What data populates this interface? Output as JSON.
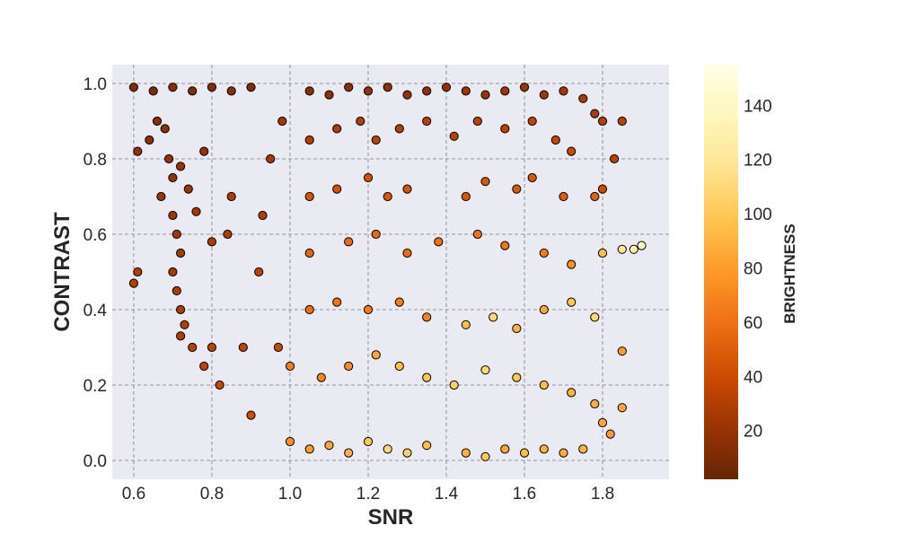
{
  "chart_data": {
    "type": "scatter",
    "title": "",
    "xlabel": "SNR",
    "ylabel": "CONTRAST",
    "xlim": [
      0.545,
      1.97
    ],
    "ylim": [
      -0.05,
      1.05
    ],
    "x_ticks": [
      0.6,
      0.8,
      1.0,
      1.2,
      1.4,
      1.6,
      1.8
    ],
    "x_tick_labels": [
      "0.6",
      "0.8",
      "1.0",
      "1.2",
      "1.4",
      "1.6",
      "1.8"
    ],
    "y_ticks": [
      0.0,
      0.2,
      0.4,
      0.6,
      0.8,
      1.0
    ],
    "y_tick_labels": [
      "0.0",
      "0.2",
      "0.4",
      "0.6",
      "0.8",
      "1.0"
    ],
    "grid": true,
    "colorbar": {
      "label": "BRIGHTNESS",
      "range": [
        2,
        155
      ],
      "ticks": [
        20,
        40,
        60,
        80,
        100,
        120,
        140
      ],
      "tick_labels": [
        "20",
        "40",
        "60",
        "80",
        "100",
        "120",
        "140"
      ],
      "colormap": "YlOrBr_r"
    },
    "colors": {
      "plot_background": "#eaeaf2",
      "grid": "#7a7a7a",
      "marker_edge": "#000000"
    },
    "series": [
      {
        "color_by": "BRIGHTNESS",
        "points": [
          [
            0.6,
            0.99,
            12
          ],
          [
            0.65,
            0.98,
            10
          ],
          [
            0.7,
            0.99,
            14
          ],
          [
            0.75,
            0.98,
            11
          ],
          [
            0.8,
            0.99,
            13
          ],
          [
            0.85,
            0.98,
            15
          ],
          [
            0.9,
            0.99,
            12
          ],
          [
            0.61,
            0.82,
            18
          ],
          [
            0.64,
            0.85,
            16
          ],
          [
            0.66,
            0.9,
            14
          ],
          [
            0.68,
            0.88,
            17
          ],
          [
            0.69,
            0.8,
            19
          ],
          [
            0.7,
            0.75,
            20
          ],
          [
            0.72,
            0.78,
            21
          ],
          [
            0.67,
            0.7,
            22
          ],
          [
            0.7,
            0.65,
            23
          ],
          [
            0.71,
            0.6,
            24
          ],
          [
            0.72,
            0.55,
            25
          ],
          [
            0.7,
            0.5,
            26
          ],
          [
            0.71,
            0.45,
            27
          ],
          [
            0.72,
            0.4,
            28
          ],
          [
            0.73,
            0.36,
            29
          ],
          [
            0.72,
            0.33,
            30
          ],
          [
            0.75,
            0.3,
            32
          ],
          [
            0.78,
            0.25,
            34
          ],
          [
            0.8,
            0.3,
            33
          ],
          [
            0.82,
            0.2,
            36
          ],
          [
            0.84,
            0.6,
            28
          ],
          [
            0.61,
            0.5,
            30
          ],
          [
            0.6,
            0.47,
            31
          ],
          [
            0.74,
            0.72,
            22
          ],
          [
            0.76,
            0.66,
            24
          ],
          [
            0.78,
            0.82,
            20
          ],
          [
            0.8,
            0.58,
            27
          ],
          [
            0.85,
            0.7,
            29
          ],
          [
            0.88,
            0.3,
            35
          ],
          [
            0.9,
            0.12,
            40
          ],
          [
            0.92,
            0.5,
            34
          ],
          [
            0.95,
            0.8,
            26
          ],
          [
            0.93,
            0.65,
            30
          ],
          [
            0.98,
            0.9,
            24
          ],
          [
            0.97,
            0.3,
            38
          ],
          [
            1.05,
            0.98,
            15
          ],
          [
            1.1,
            0.97,
            17
          ],
          [
            1.15,
            0.99,
            16
          ],
          [
            1.2,
            0.98,
            18
          ],
          [
            1.25,
            0.99,
            17
          ],
          [
            1.3,
            0.97,
            19
          ],
          [
            1.35,
            0.98,
            18
          ],
          [
            1.4,
            0.99,
            20
          ],
          [
            1.45,
            0.98,
            21
          ],
          [
            1.5,
            0.97,
            22
          ],
          [
            1.55,
            0.98,
            23
          ],
          [
            1.6,
            0.99,
            22
          ],
          [
            1.65,
            0.97,
            24
          ],
          [
            1.7,
            0.98,
            25
          ],
          [
            1.75,
            0.96,
            26
          ],
          [
            1.78,
            0.92,
            28
          ],
          [
            1.8,
            0.9,
            30
          ],
          [
            1.85,
            0.9,
            32
          ],
          [
            1.83,
            0.8,
            33
          ],
          [
            1.8,
            0.72,
            40
          ],
          [
            1.05,
            0.85,
            30
          ],
          [
            1.12,
            0.88,
            28
          ],
          [
            1.18,
            0.9,
            29
          ],
          [
            1.22,
            0.85,
            32
          ],
          [
            1.28,
            0.88,
            30
          ],
          [
            1.35,
            0.9,
            31
          ],
          [
            1.42,
            0.86,
            33
          ],
          [
            1.48,
            0.9,
            32
          ],
          [
            1.55,
            0.88,
            34
          ],
          [
            1.62,
            0.9,
            35
          ],
          [
            1.68,
            0.85,
            36
          ],
          [
            1.72,
            0.82,
            38
          ],
          [
            1.05,
            0.7,
            45
          ],
          [
            1.12,
            0.72,
            44
          ],
          [
            1.2,
            0.75,
            43
          ],
          [
            1.25,
            0.7,
            46
          ],
          [
            1.3,
            0.72,
            45
          ],
          [
            1.45,
            0.7,
            47
          ],
          [
            1.5,
            0.74,
            46
          ],
          [
            1.58,
            0.72,
            48
          ],
          [
            1.62,
            0.75,
            47
          ],
          [
            1.7,
            0.7,
            50
          ],
          [
            1.78,
            0.7,
            52
          ],
          [
            1.05,
            0.55,
            55
          ],
          [
            1.15,
            0.58,
            57
          ],
          [
            1.22,
            0.6,
            56
          ],
          [
            1.3,
            0.55,
            58
          ],
          [
            1.38,
            0.58,
            60
          ],
          [
            1.48,
            0.6,
            61
          ],
          [
            1.55,
            0.57,
            62
          ],
          [
            1.65,
            0.55,
            66
          ],
          [
            1.72,
            0.52,
            75
          ],
          [
            1.8,
            0.55,
            95
          ],
          [
            1.85,
            0.56,
            120
          ],
          [
            1.88,
            0.56,
            130
          ],
          [
            1.9,
            0.57,
            140
          ],
          [
            1.05,
            0.4,
            60
          ],
          [
            1.12,
            0.42,
            62
          ],
          [
            1.2,
            0.4,
            65
          ],
          [
            1.28,
            0.42,
            66
          ],
          [
            1.35,
            0.38,
            70
          ],
          [
            1.45,
            0.36,
            95
          ],
          [
            1.52,
            0.38,
            110
          ],
          [
            1.58,
            0.35,
            90
          ],
          [
            1.65,
            0.4,
            85
          ],
          [
            1.72,
            0.42,
            100
          ],
          [
            1.78,
            0.38,
            110
          ],
          [
            1.85,
            0.29,
            80
          ],
          [
            1.0,
            0.25,
            65
          ],
          [
            1.08,
            0.22,
            70
          ],
          [
            1.15,
            0.25,
            72
          ],
          [
            1.22,
            0.28,
            85
          ],
          [
            1.28,
            0.25,
            95
          ],
          [
            1.35,
            0.22,
            100
          ],
          [
            1.42,
            0.2,
            105
          ],
          [
            1.5,
            0.24,
            110
          ],
          [
            1.58,
            0.22,
            100
          ],
          [
            1.65,
            0.2,
            95
          ],
          [
            1.72,
            0.18,
            90
          ],
          [
            1.78,
            0.15,
            88
          ],
          [
            1.85,
            0.14,
            85
          ],
          [
            1.0,
            0.05,
            75
          ],
          [
            1.05,
            0.03,
            80
          ],
          [
            1.1,
            0.04,
            85
          ],
          [
            1.15,
            0.02,
            90
          ],
          [
            1.2,
            0.05,
            100
          ],
          [
            1.25,
            0.03,
            110
          ],
          [
            1.3,
            0.02,
            105
          ],
          [
            1.35,
            0.04,
            95
          ],
          [
            1.45,
            0.02,
            90
          ],
          [
            1.5,
            0.01,
            100
          ],
          [
            1.55,
            0.03,
            85
          ],
          [
            1.6,
            0.02,
            95
          ],
          [
            1.65,
            0.03,
            90
          ],
          [
            1.7,
            0.02,
            88
          ],
          [
            1.75,
            0.03,
            92
          ],
          [
            1.8,
            0.1,
            85
          ],
          [
            1.82,
            0.07,
            80
          ]
        ]
      }
    ]
  }
}
